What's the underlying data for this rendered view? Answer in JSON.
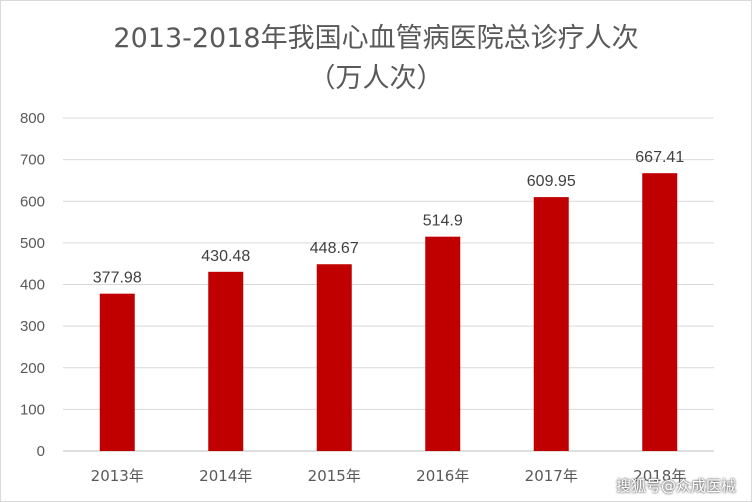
{
  "chart_data": {
    "type": "bar",
    "title_lines": [
      "2013-2018年我国心血管病医院总诊疗人次",
      "（万人次）"
    ],
    "categories": [
      "2013年",
      "2014年",
      "2015年",
      "2016年",
      "2017年",
      "2018年"
    ],
    "values": [
      377.98,
      430.48,
      448.67,
      514.9,
      609.95,
      667.41
    ],
    "data_labels": [
      "377.98",
      "430.48",
      "448.67",
      "514.9",
      "609.95",
      "667.41"
    ],
    "ylim": [
      0,
      800
    ],
    "yticks": [
      0,
      100,
      200,
      300,
      400,
      500,
      600,
      700,
      800
    ],
    "grid": true,
    "bar_color": "#c00000",
    "legend": "none"
  },
  "watermark": "搜狐号@众成医械"
}
